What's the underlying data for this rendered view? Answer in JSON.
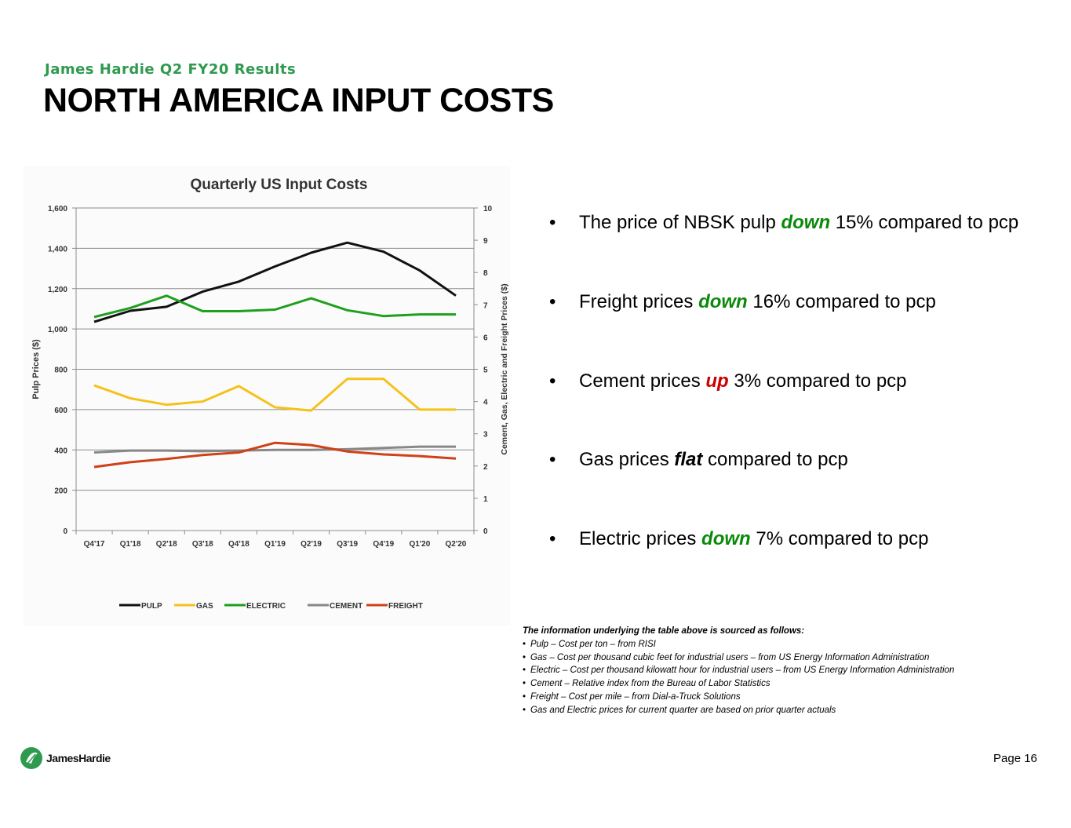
{
  "header": {
    "subtitle": "James Hardie Q2 FY20 Results",
    "title": "NORTH AMERICA INPUT COSTS"
  },
  "chart_data": {
    "type": "line",
    "title": "Quarterly US Input Costs",
    "categories": [
      "Q4'17",
      "Q1'18",
      "Q2'18",
      "Q3'18",
      "Q4'18",
      "Q1'19",
      "Q2'19",
      "Q3'19",
      "Q4'19",
      "Q1'20",
      "Q2'20"
    ],
    "ylabel": "Pulp Prices ($)",
    "y2label": "Cement, Gas, Electric and Freight Prices ($)",
    "ylim": [
      0,
      1600
    ],
    "y2lim": [
      0,
      10
    ],
    "yticks": [
      "0",
      "200",
      "400",
      "600",
      "800",
      "1,000",
      "1,200",
      "1,400",
      "1,600"
    ],
    "y2ticks": [
      "0",
      "1",
      "2",
      "3",
      "4",
      "5",
      "6",
      "7",
      "8",
      "9",
      "10"
    ],
    "grid": true,
    "legend_position": "bottom",
    "series": [
      {
        "name": "PULP",
        "axis": "left",
        "color": "#111111",
        "values": [
          1035,
          1090,
          1110,
          1185,
          1235,
          1310,
          1378,
          1428,
          1383,
          1290,
          1165
        ]
      },
      {
        "name": "GAS",
        "axis": "right",
        "color": "#f5c21b",
        "values": [
          4.5,
          4.1,
          3.9,
          4.0,
          4.48,
          3.82,
          3.72,
          4.7,
          4.7,
          3.75,
          3.75
        ]
      },
      {
        "name": "ELECTRIC",
        "axis": "right",
        "color": "#1ea01e",
        "values": [
          6.62,
          6.9,
          7.28,
          6.8,
          6.8,
          6.85,
          7.2,
          6.83,
          6.65,
          6.7,
          6.7
        ]
      },
      {
        "name": "CEMENT",
        "axis": "right",
        "color": "#888888",
        "values": [
          2.42,
          2.48,
          2.48,
          2.46,
          2.48,
          2.5,
          2.5,
          2.52,
          2.56,
          2.6,
          2.6
        ]
      },
      {
        "name": "FREIGHT",
        "axis": "right",
        "color": "#cf4118",
        "values": [
          1.97,
          2.12,
          2.22,
          2.34,
          2.42,
          2.72,
          2.65,
          2.45,
          2.36,
          2.31,
          2.23
        ]
      }
    ]
  },
  "bullets": [
    {
      "pre": "The price of NBSK pulp ",
      "kw": "down",
      "kw_color": "#0a8a0a",
      "post": " 15% compared to pcp"
    },
    {
      "pre": "Freight prices ",
      "kw": "down",
      "kw_color": "#0a8a0a",
      "post": " 16% compared to pcp"
    },
    {
      "pre": "Cement prices ",
      "kw": "up",
      "kw_color": "#cc0000",
      "post": " 3% compared to pcp"
    },
    {
      "pre": "Gas prices ",
      "kw": "flat",
      "kw_color": "#000000",
      "post": " compared to pcp"
    },
    {
      "pre": "Electric prices ",
      "kw": "down",
      "kw_color": "#0a8a0a",
      "post": " 7% compared to pcp"
    }
  ],
  "notes": {
    "heading": "The information underlying the table above is sourced as follows:",
    "items": [
      "Pulp – Cost per ton – from RISI",
      "Gas – Cost per thousand cubic feet for industrial users – from US Energy Information Administration",
      "Electric – Cost per thousand kilowatt hour for industrial users – from US Energy Information Administration",
      "Cement – Relative index from the Bureau of Labor Statistics",
      "Freight – Cost per mile – from Dial-a-Truck Solutions",
      "Gas and Electric prices for current quarter are based on prior quarter actuals"
    ]
  },
  "footer": {
    "logo_text": "JamesHardie",
    "page": "Page 16"
  }
}
